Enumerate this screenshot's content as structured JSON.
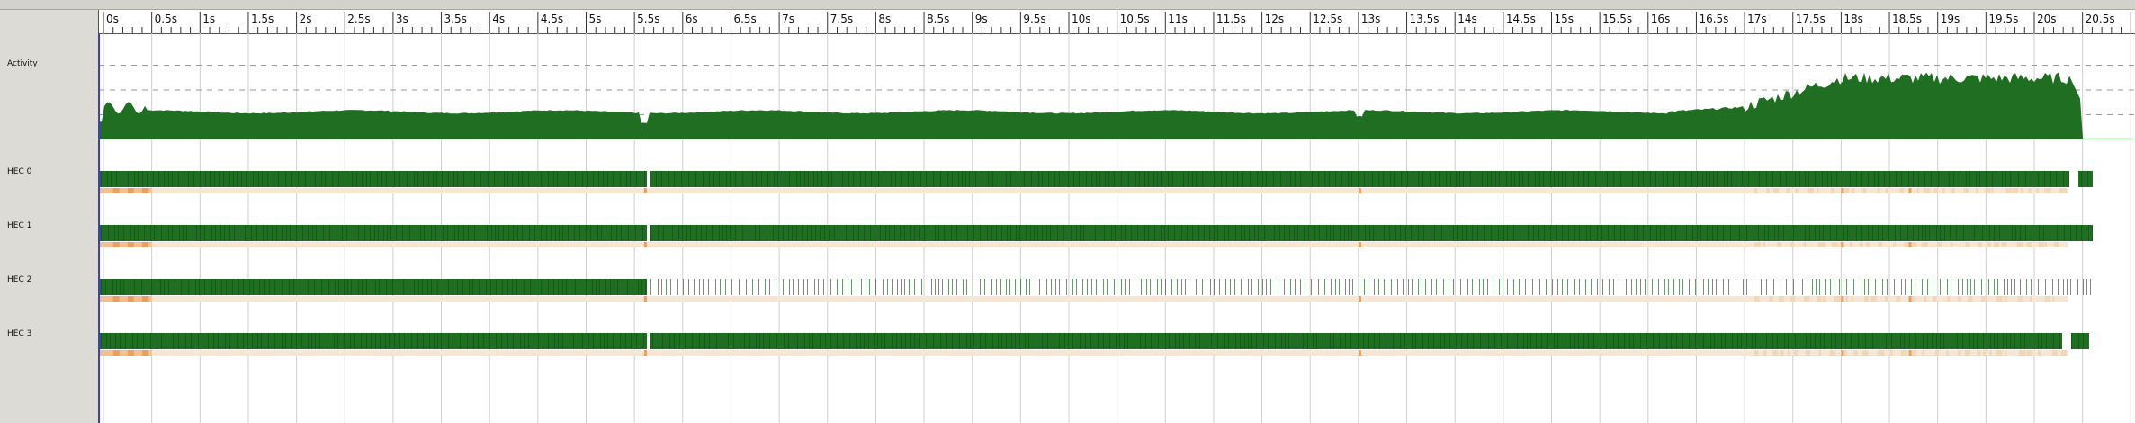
{
  "timeline": {
    "axis_unit": "s",
    "tick_labels": [
      "0s",
      "0.5s",
      "1s",
      "1.5s",
      "2s",
      "2.5s",
      "3s",
      "3.5s",
      "4s",
      "4.5s",
      "5s",
      "5.5s",
      "6s",
      "6.5s",
      "7s",
      "7.5s",
      "8s",
      "8.5s",
      "9s",
      "9.5s",
      "10s",
      "10.5s",
      "11s",
      "11.5s",
      "12s",
      "12.5s",
      "13s",
      "13.5s",
      "14s",
      "14.5s",
      "15s",
      "15.5s",
      "16s",
      "16.5s",
      "17s",
      "17.5s",
      "18s",
      "18.5s",
      "19s",
      "19.5s",
      "20s",
      "20.5s"
    ],
    "major_step_s": 0.5,
    "minor_per_major": 5
  },
  "rows": [
    {
      "id": "activity",
      "label": "Activity",
      "type": "activity"
    },
    {
      "id": "hec0",
      "label": "HEC 0",
      "type": "hec"
    },
    {
      "id": "hec1",
      "label": "HEC 1",
      "type": "hec"
    },
    {
      "id": "hec2",
      "label": "HEC 2",
      "type": "hec"
    },
    {
      "id": "hec3",
      "label": "HEC 3",
      "type": "hec"
    }
  ],
  "colors": {
    "running": "#1f6e21",
    "running_dark": "#0f4d12",
    "gc": "#e8a060",
    "gc_light": "#f6e6d2",
    "cursor": "#3b3bd6",
    "grid": "#cfcfcf"
  },
  "activity_profile": {
    "baseline_level": 0.28,
    "peak_region_start_s": 17.0,
    "peak_region_end_s": 20.35,
    "peak_level": 0.62,
    "end_s": 20.5
  },
  "gc_events_s": [
    0.1,
    0.25,
    0.4,
    5.6,
    13.0,
    18.0,
    18.7
  ]
}
